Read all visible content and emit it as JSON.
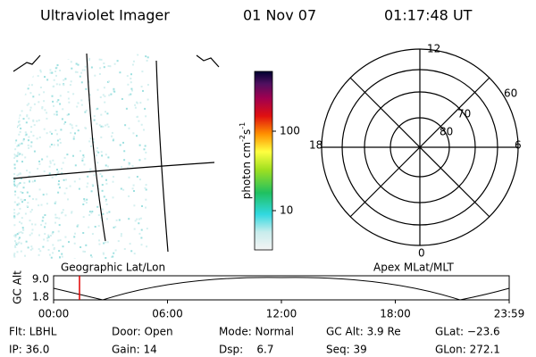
{
  "header": {
    "instrument": "Ultraviolet Imager",
    "date": "01 Nov 07",
    "time": "01:17:48 UT"
  },
  "colorbar": {
    "unit": {
      "base": "photon cm",
      "exp1": "-2",
      "mid": "s",
      "exp2": "-1"
    },
    "ticks": [
      "100",
      "10"
    ]
  },
  "polar": {
    "mlt_labels": [
      "12",
      "18",
      "6",
      "0"
    ],
    "lat_labels": [
      "60",
      "70",
      "80"
    ]
  },
  "timeline": {
    "ylabel": "GC Alt",
    "yticks": [
      "9.0",
      "1.8"
    ],
    "left_label": "Geographic Lat/Lon",
    "right_label": "Apex MLat/MLT",
    "xticks": [
      "00:00",
      "06:00",
      "12:00",
      "18:00",
      "23:59"
    ]
  },
  "info": {
    "rows": [
      [
        "Flt: LBHL",
        "Door: Open",
        "Mode: Normal",
        "GC Alt: 3.9 Re",
        "GLat: −23.6"
      ],
      [
        "IP: 36.0",
        "Gain: 14",
        "Dsp:    6.7",
        "Seq: 39",
        "GLon: 272.1"
      ]
    ]
  }
}
